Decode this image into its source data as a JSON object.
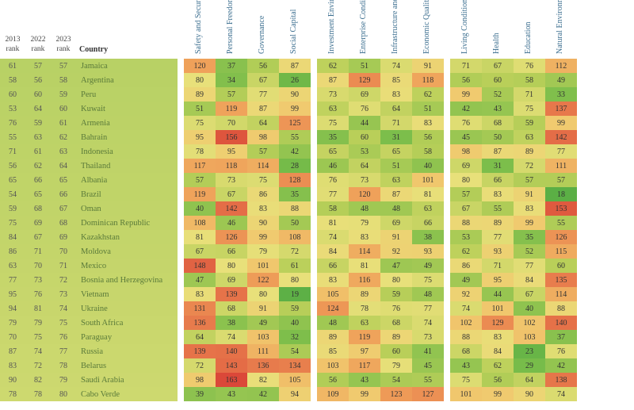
{
  "table": {
    "rank_headers": [
      "2013 rank",
      "2022 rank",
      "2023 rank"
    ],
    "country_header": "Country",
    "metric_headers": [
      "Safety and Security",
      "Personal Freedom",
      "Governance",
      "Social Capital",
      "Investment Environment",
      "Enterprise Conditions",
      "Infrastructure and Market Access",
      "Economic Quality",
      "Living Conditions",
      "Health",
      "Education",
      "Natural Environment"
    ],
    "metric_groups": [
      4,
      4,
      4
    ],
    "header_style": {
      "rotated_color": "#3b6e8f",
      "rank_fontsize": 9.5,
      "metric_fontsize": 10
    },
    "color_scale": {
      "stops": [
        [
          1,
          "#2e9b3f"
        ],
        [
          30,
          "#7abd4a"
        ],
        [
          60,
          "#b9cf59"
        ],
        [
          80,
          "#e8e07a"
        ],
        [
          100,
          "#f0c96e"
        ],
        [
          120,
          "#efa15a"
        ],
        [
          140,
          "#e57148"
        ],
        [
          167,
          "#d94136"
        ]
      ]
    },
    "rank_bg_scale": {
      "stops": [
        [
          1,
          "#8fc157"
        ],
        [
          40,
          "#a9cc5e"
        ],
        [
          70,
          "#c4d56a"
        ],
        [
          100,
          "#e0e07a"
        ],
        [
          130,
          "#eec77a"
        ],
        [
          167,
          "#e88f5a"
        ]
      ]
    },
    "rows": [
      {
        "ranks": [
          61,
          57,
          57
        ],
        "country": "Jamaica",
        "metrics": [
          120,
          37,
          56,
          87,
          62,
          51,
          74,
          91,
          71,
          67,
          76,
          112
        ]
      },
      {
        "ranks": [
          58,
          56,
          58
        ],
        "country": "Argentina",
        "metrics": [
          80,
          34,
          67,
          26,
          87,
          129,
          85,
          118,
          56,
          60,
          58,
          49
        ]
      },
      {
        "ranks": [
          60,
          60,
          59
        ],
        "country": "Peru",
        "metrics": [
          89,
          57,
          77,
          90,
          73,
          69,
          83,
          62,
          99,
          52,
          71,
          33
        ]
      },
      {
        "ranks": [
          53,
          64,
          60
        ],
        "country": "Kuwait",
        "metrics": [
          51,
          119,
          87,
          99,
          63,
          76,
          64,
          51,
          42,
          43,
          75,
          137
        ]
      },
      {
        "ranks": [
          76,
          59,
          61
        ],
        "country": "Armenia",
        "metrics": [
          75,
          70,
          64,
          125,
          75,
          44,
          71,
          83,
          76,
          68,
          59,
          99
        ]
      },
      {
        "ranks": [
          55,
          63,
          62
        ],
        "country": "Bahrain",
        "metrics": [
          95,
          156,
          98,
          55,
          35,
          60,
          31,
          56,
          45,
          50,
          63,
          142
        ]
      },
      {
        "ranks": [
          71,
          61,
          63
        ],
        "country": "Indonesia",
        "metrics": [
          78,
          95,
          57,
          42,
          65,
          53,
          65,
          58,
          98,
          87,
          89,
          77
        ]
      },
      {
        "ranks": [
          56,
          62,
          64
        ],
        "country": "Thailand",
        "metrics": [
          117,
          118,
          114,
          28,
          46,
          64,
          51,
          40,
          69,
          31,
          72,
          111
        ]
      },
      {
        "ranks": [
          65,
          66,
          65
        ],
        "country": "Albania",
        "metrics": [
          57,
          73,
          75,
          128,
          76,
          73,
          63,
          101,
          80,
          66,
          57,
          57
        ]
      },
      {
        "ranks": [
          54,
          65,
          66
        ],
        "country": "Brazil",
        "metrics": [
          119,
          67,
          86,
          35,
          77,
          120,
          87,
          81,
          57,
          83,
          91,
          18
        ]
      },
      {
        "ranks": [
          59,
          68,
          67
        ],
        "country": "Oman",
        "metrics": [
          40,
          142,
          83,
          88,
          58,
          48,
          48,
          63,
          67,
          55,
          83,
          153
        ]
      },
      {
        "ranks": [
          75,
          69,
          68
        ],
        "country": "Dominican Republic",
        "metrics": [
          108,
          46,
          90,
          50,
          81,
          79,
          69,
          66,
          88,
          89,
          99,
          55
        ]
      },
      {
        "ranks": [
          84,
          67,
          69
        ],
        "country": "Kazakhstan",
        "metrics": [
          81,
          126,
          99,
          108,
          74,
          83,
          91,
          38,
          53,
          77,
          35,
          126
        ]
      },
      {
        "ranks": [
          86,
          71,
          70
        ],
        "country": "Moldova",
        "metrics": [
          67,
          66,
          79,
          72,
          84,
          114,
          92,
          93,
          62,
          93,
          52,
          115
        ]
      },
      {
        "ranks": [
          63,
          70,
          71
        ],
        "country": "Mexico",
        "metrics": [
          148,
          80,
          101,
          61,
          66,
          81,
          47,
          49,
          86,
          71,
          77,
          60
        ]
      },
      {
        "ranks": [
          77,
          73,
          72
        ],
        "country": "Bosnia and Herzegovina",
        "metrics": [
          47,
          69,
          122,
          80,
          83,
          116,
          80,
          75,
          49,
          95,
          84,
          135
        ]
      },
      {
        "ranks": [
          95,
          76,
          73
        ],
        "country": "Vietnam",
        "metrics": [
          83,
          139,
          80,
          19,
          105,
          89,
          59,
          48,
          92,
          44,
          67,
          114
        ]
      },
      {
        "ranks": [
          94,
          81,
          74
        ],
        "country": "Ukraine",
        "metrics": [
          131,
          68,
          91,
          59,
          124,
          78,
          76,
          77,
          74,
          101,
          40,
          88
        ]
      },
      {
        "ranks": [
          79,
          79,
          75
        ],
        "country": "South Africa",
        "metrics": [
          136,
          38,
          49,
          40,
          48,
          63,
          68,
          74,
          102,
          129,
          102,
          140
        ]
      },
      {
        "ranks": [
          70,
          75,
          76
        ],
        "country": "Paraguay",
        "metrics": [
          64,
          74,
          103,
          32,
          89,
          119,
          89,
          73,
          88,
          83,
          103,
          37
        ]
      },
      {
        "ranks": [
          87,
          74,
          77
        ],
        "country": "Russia",
        "metrics": [
          139,
          140,
          111,
          54,
          85,
          97,
          60,
          41,
          68,
          84,
          23,
          76
        ]
      },
      {
        "ranks": [
          83,
          72,
          78
        ],
        "country": "Belarus",
        "metrics": [
          72,
          143,
          136,
          134,
          103,
          117,
          79,
          45,
          43,
          62,
          29,
          42
        ]
      },
      {
        "ranks": [
          90,
          82,
          79
        ],
        "country": "Saudi Arabia",
        "metrics": [
          98,
          163,
          82,
          105,
          56,
          43,
          54,
          55,
          75,
          56,
          64,
          138
        ]
      },
      {
        "ranks": [
          78,
          78,
          80
        ],
        "country": "Cabo Verde",
        "metrics": [
          39,
          43,
          42,
          94,
          109,
          99,
          123,
          127,
          101,
          99,
          90,
          74
        ]
      }
    ]
  }
}
